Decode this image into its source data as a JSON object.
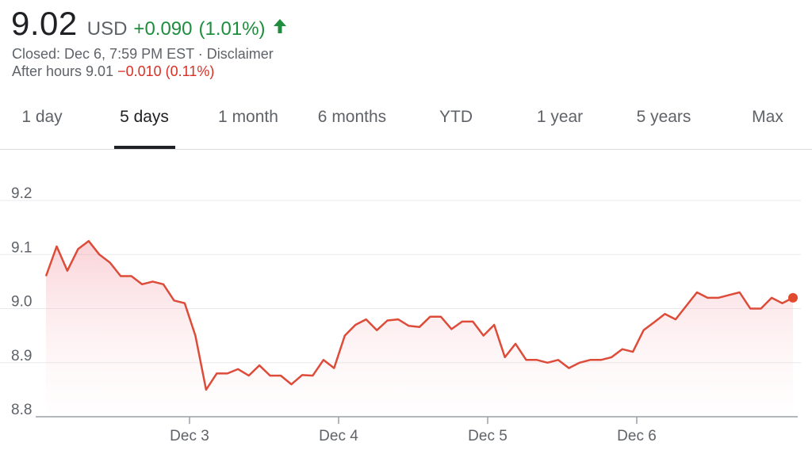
{
  "quote": {
    "price": "9.02",
    "currency": "USD",
    "change": "+0.090",
    "change_pct": "(1.01%)",
    "direction_icon": "arrow-up-icon",
    "status": "Closed: Dec 6, 7:59 PM EST · Disclaimer",
    "after_hours_label": "After hours 9.01",
    "after_hours_change": "−0.010 (0.11%)"
  },
  "tabs": [
    {
      "label": "1 day"
    },
    {
      "label": "5 days",
      "active": true
    },
    {
      "label": "1 month"
    },
    {
      "label": "6 months"
    },
    {
      "label": "YTD"
    },
    {
      "label": "1 year"
    },
    {
      "label": "5 years"
    },
    {
      "label": "Max"
    }
  ],
  "colors": {
    "positive": "#1e8e3e",
    "negative": "#d93025",
    "line": "#dd4b39",
    "grid": "#e8eaed"
  },
  "chart_data": {
    "type": "area",
    "title": "",
    "xlabel": "",
    "ylabel": "",
    "ylim": [
      8.8,
      9.2
    ],
    "yticks": [
      "9.2",
      "9.1",
      "9.0",
      "8.9",
      "8.8"
    ],
    "xticks": [
      "Dec 3",
      "Dec 4",
      "Dec 5",
      "Dec 6"
    ],
    "grid": true,
    "series": [
      {
        "values": [
          9.06,
          9.115,
          9.07,
          9.11,
          9.125,
          9.1,
          9.085,
          9.06,
          9.06,
          9.045,
          9.05,
          9.045,
          9.015,
          9.01,
          8.95,
          8.85,
          8.88,
          8.88,
          8.888,
          8.876,
          8.895,
          8.876,
          8.876,
          8.86,
          8.877,
          8.876,
          8.905,
          8.89,
          8.95,
          8.97,
          8.98,
          8.96,
          8.978,
          8.98,
          8.968,
          8.966,
          8.985,
          8.985,
          8.962,
          8.976,
          8.976,
          8.95,
          8.97,
          8.91,
          8.935,
          8.905,
          8.905,
          8.9,
          8.905,
          8.89,
          8.9,
          8.905,
          8.905,
          8.91,
          8.925,
          8.92,
          8.96,
          8.975,
          8.99,
          8.98,
          9.005,
          9.03,
          9.02,
          9.02,
          9.025,
          9.03,
          9.0,
          9.0,
          9.02,
          9.01,
          9.02
        ]
      }
    ],
    "last_point_marker": true
  }
}
